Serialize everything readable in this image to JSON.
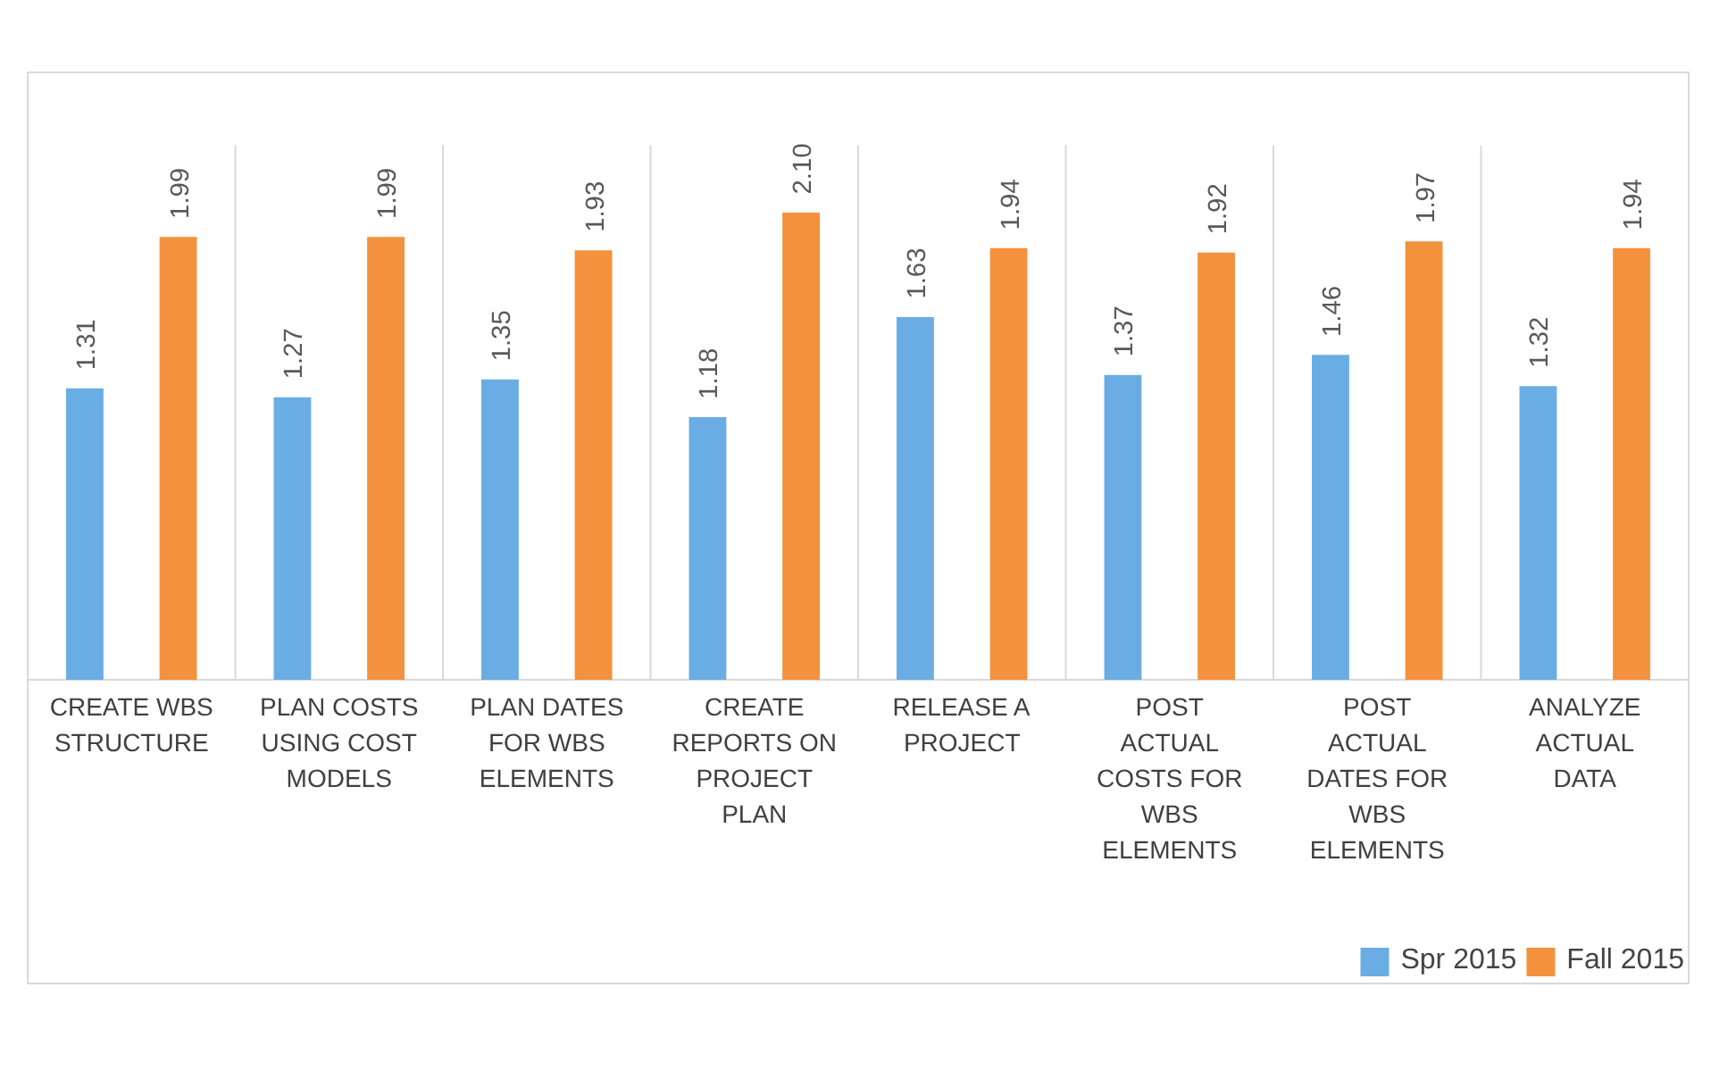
{
  "chart_data": {
    "type": "bar",
    "categories": [
      "CREATE WBS STRUCTURE",
      "PLAN COSTS USING COST MODELS",
      "PLAN DATES FOR WBS ELEMENTS",
      "CREATE REPORTS ON PROJECT PLAN",
      "RELEASE A PROJECT",
      "POST ACTUAL COSTS FOR WBS ELEMENTS",
      "POST ACTUAL DATES FOR WBS ELEMENTS",
      "ANALYZE ACTUAL DATA"
    ],
    "series": [
      {
        "name": "Spr 2015",
        "color": "#6aade4",
        "values": [
          1.31,
          1.27,
          1.35,
          1.18,
          1.63,
          1.37,
          1.46,
          1.32
        ],
        "value_labels": [
          "1.31",
          "1.27",
          "1.35",
          "1.18",
          "1.63",
          "1.37",
          "1.46",
          "1.32"
        ]
      },
      {
        "name": "Fall 2015",
        "color": "#f4913d",
        "values": [
          1.99,
          1.99,
          1.93,
          2.1,
          1.94,
          1.92,
          1.97,
          1.94
        ],
        "value_labels": [
          "1.99",
          "1.99",
          "1.93",
          "2.10",
          "1.94",
          "1.92",
          "1.97",
          "1.94"
        ]
      }
    ],
    "legend": "bottom",
    "grid": false
  }
}
